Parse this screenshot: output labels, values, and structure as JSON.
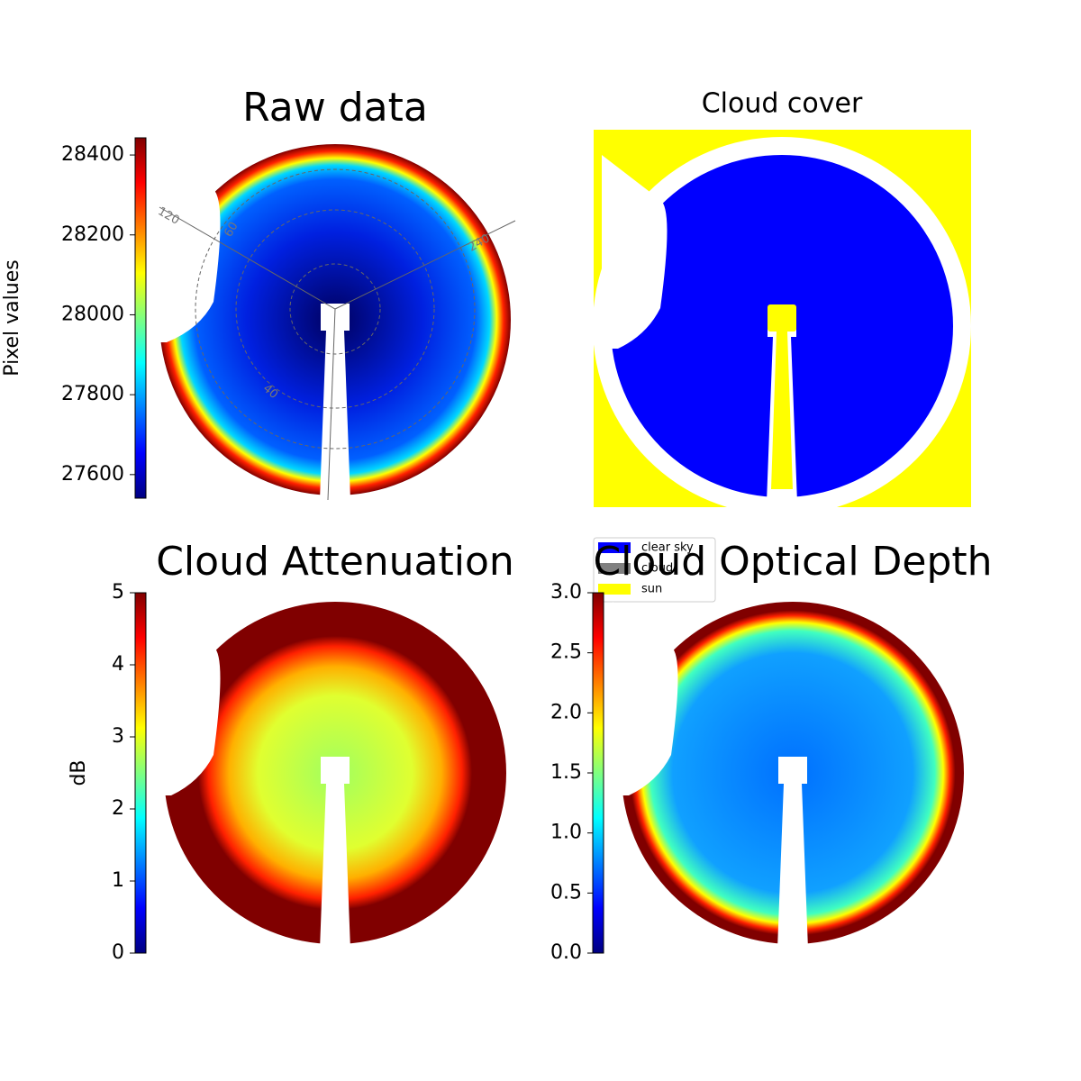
{
  "chart_data": [
    {
      "type": "image",
      "title": "Raw data",
      "colorbar_label": "Pixel values",
      "colormap": "jet",
      "clim": [
        27541,
        28443
      ],
      "cticks": [
        27600,
        27800,
        28000,
        28200,
        28400
      ],
      "annotations": [
        "120",
        "60",
        "240",
        "40"
      ]
    },
    {
      "type": "categorical",
      "title": "Cloud cover",
      "series": [
        {
          "name": "clear sky",
          "color": "#0000ff"
        },
        {
          "name": "cloud",
          "color": "#808080"
        },
        {
          "name": "sun",
          "color": "#ffff00"
        }
      ]
    },
    {
      "type": "image",
      "title": "Cloud Attenuation",
      "colorbar_label": "dB",
      "colormap": "jet",
      "clim": [
        0,
        5
      ],
      "cticks": [
        0,
        1,
        2,
        3,
        4,
        5
      ]
    },
    {
      "type": "image",
      "title": "Cloud Optical Depth",
      "colormap": "jet",
      "clim": [
        0,
        3
      ],
      "cticks": [
        {
          "value": 0,
          "label": "0.0"
        },
        0.5,
        {
          "value": 1,
          "label": "1.0"
        },
        1.5,
        {
          "value": 2,
          "label": "2.0"
        },
        2.5,
        {
          "value": 3,
          "label": "3.0"
        }
      ]
    }
  ]
}
